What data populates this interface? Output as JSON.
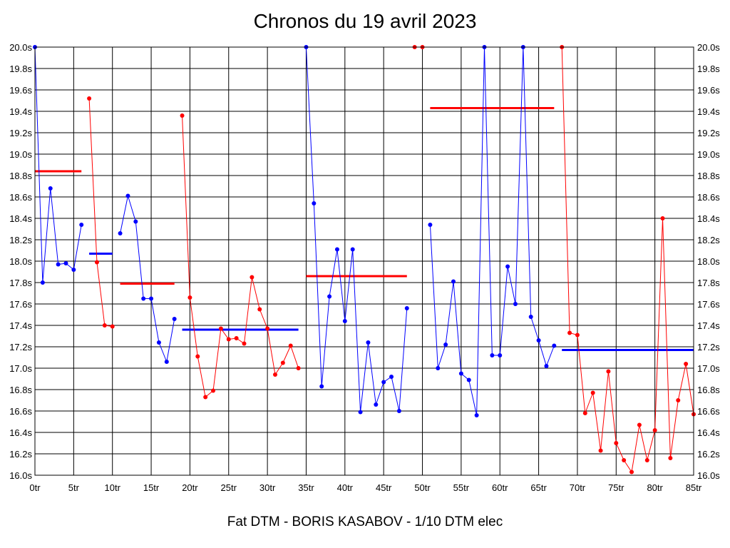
{
  "chart_data": {
    "type": "line",
    "title": "Chronos du 19 avril 2023",
    "caption": "Fat DTM - BORIS KASABOV - 1/10 DTM elec",
    "xlabel": "",
    "ylabel": "",
    "xlim": [
      0,
      85
    ],
    "ylim": [
      16.0,
      20.0
    ],
    "x_ticks": [
      "0tr",
      "5tr",
      "10tr",
      "15tr",
      "20tr",
      "25tr",
      "30tr",
      "35tr",
      "40tr",
      "45tr",
      "50tr",
      "55tr",
      "60tr",
      "65tr",
      "70tr",
      "75tr",
      "80tr",
      "85tr"
    ],
    "y_ticks": [
      "16.0s",
      "16.2s",
      "16.4s",
      "16.6s",
      "16.8s",
      "17.0s",
      "17.2s",
      "17.4s",
      "17.6s",
      "17.8s",
      "18.0s",
      "18.2s",
      "18.4s",
      "18.6s",
      "18.8s",
      "19.0s",
      "19.2s",
      "19.4s",
      "19.6s",
      "19.8s",
      "20.0s"
    ],
    "grid": true,
    "colors": {
      "blue": "#0000ff",
      "red": "#ff0000"
    },
    "series": [
      {
        "color": "#0000ff",
        "points": [
          [
            0,
            20.0
          ],
          [
            1,
            17.8
          ],
          [
            2,
            18.68
          ],
          [
            3,
            17.97
          ],
          [
            4,
            17.98
          ],
          [
            5,
            17.92
          ],
          [
            6,
            18.34
          ]
        ]
      },
      {
        "color": "#ff0000",
        "points": [
          [
            7,
            19.52
          ],
          [
            8,
            17.99
          ],
          [
            9,
            17.4
          ],
          [
            10,
            17.39
          ]
        ]
      },
      {
        "color": "#0000ff",
        "points": [
          [
            11,
            18.26
          ],
          [
            12,
            18.61
          ],
          [
            13,
            18.37
          ],
          [
            14,
            17.65
          ],
          [
            15,
            17.65
          ],
          [
            16,
            17.24
          ],
          [
            17,
            17.06
          ],
          [
            18,
            17.46
          ]
        ]
      },
      {
        "color": "#ff0000",
        "points": [
          [
            19,
            19.36
          ],
          [
            20,
            17.66
          ],
          [
            21,
            17.11
          ],
          [
            22,
            16.73
          ],
          [
            23,
            16.79
          ],
          [
            24,
            17.37
          ],
          [
            25,
            17.27
          ],
          [
            26,
            17.28
          ],
          [
            27,
            17.23
          ],
          [
            28,
            17.85
          ],
          [
            29,
            17.55
          ],
          [
            30,
            17.37
          ],
          [
            31,
            16.94
          ],
          [
            32,
            17.05
          ],
          [
            33,
            17.21
          ],
          [
            34,
            17.0
          ]
        ]
      },
      {
        "color": "#0000ff",
        "points": [
          [
            35,
            20.0
          ],
          [
            36,
            18.54
          ],
          [
            37,
            16.83
          ],
          [
            38,
            17.67
          ],
          [
            39,
            18.11
          ],
          [
            40,
            17.44
          ],
          [
            41,
            18.11
          ],
          [
            42,
            16.59
          ],
          [
            43,
            17.24
          ],
          [
            44,
            16.66
          ],
          [
            45,
            16.87
          ],
          [
            46,
            16.92
          ],
          [
            47,
            16.6
          ],
          [
            48,
            17.56
          ]
        ]
      },
      {
        "color": "#ff0000",
        "points": [
          [
            49,
            20.0
          ],
          [
            50,
            20.0
          ]
        ]
      },
      {
        "color": "#0000ff",
        "points": [
          [
            51,
            18.34
          ],
          [
            52,
            17.0
          ],
          [
            53,
            17.22
          ],
          [
            54,
            17.81
          ],
          [
            55,
            16.95
          ],
          [
            56,
            16.89
          ],
          [
            57,
            16.56
          ],
          [
            58,
            20.0
          ],
          [
            59,
            17.12
          ],
          [
            60,
            17.12
          ],
          [
            61,
            17.95
          ],
          [
            62,
            17.6
          ],
          [
            63,
            20.0
          ],
          [
            64,
            17.48
          ],
          [
            65,
            17.26
          ],
          [
            66,
            17.02
          ],
          [
            67,
            17.21
          ]
        ]
      },
      {
        "color": "#ff0000",
        "points": [
          [
            68,
            20.0
          ],
          [
            69,
            17.33
          ],
          [
            70,
            17.31
          ],
          [
            71,
            16.58
          ],
          [
            72,
            16.77
          ],
          [
            73,
            16.23
          ],
          [
            74,
            16.97
          ],
          [
            75,
            16.3
          ],
          [
            76,
            16.14
          ],
          [
            77,
            16.03
          ],
          [
            78,
            16.47
          ],
          [
            79,
            16.14
          ],
          [
            80,
            16.42
          ],
          [
            81,
            18.4
          ],
          [
            82,
            16.16
          ],
          [
            83,
            16.7
          ],
          [
            84,
            17.04
          ],
          [
            85,
            16.57
          ]
        ]
      }
    ],
    "averages": [
      {
        "color": "#ff0000",
        "x": [
          0,
          6
        ],
        "y": 18.84
      },
      {
        "color": "#0000ff",
        "x": [
          7,
          10
        ],
        "y": 18.07
      },
      {
        "color": "#ff0000",
        "x": [
          11,
          18
        ],
        "y": 17.79
      },
      {
        "color": "#0000ff",
        "x": [
          19,
          34
        ],
        "y": 17.36
      },
      {
        "color": "#ff0000",
        "x": [
          35,
          48
        ],
        "y": 17.86
      },
      {
        "color": "#ff0000",
        "x": [
          51,
          67
        ],
        "y": 19.43
      },
      {
        "color": "#0000ff",
        "x": [
          68,
          85
        ],
        "y": 17.17
      }
    ]
  }
}
